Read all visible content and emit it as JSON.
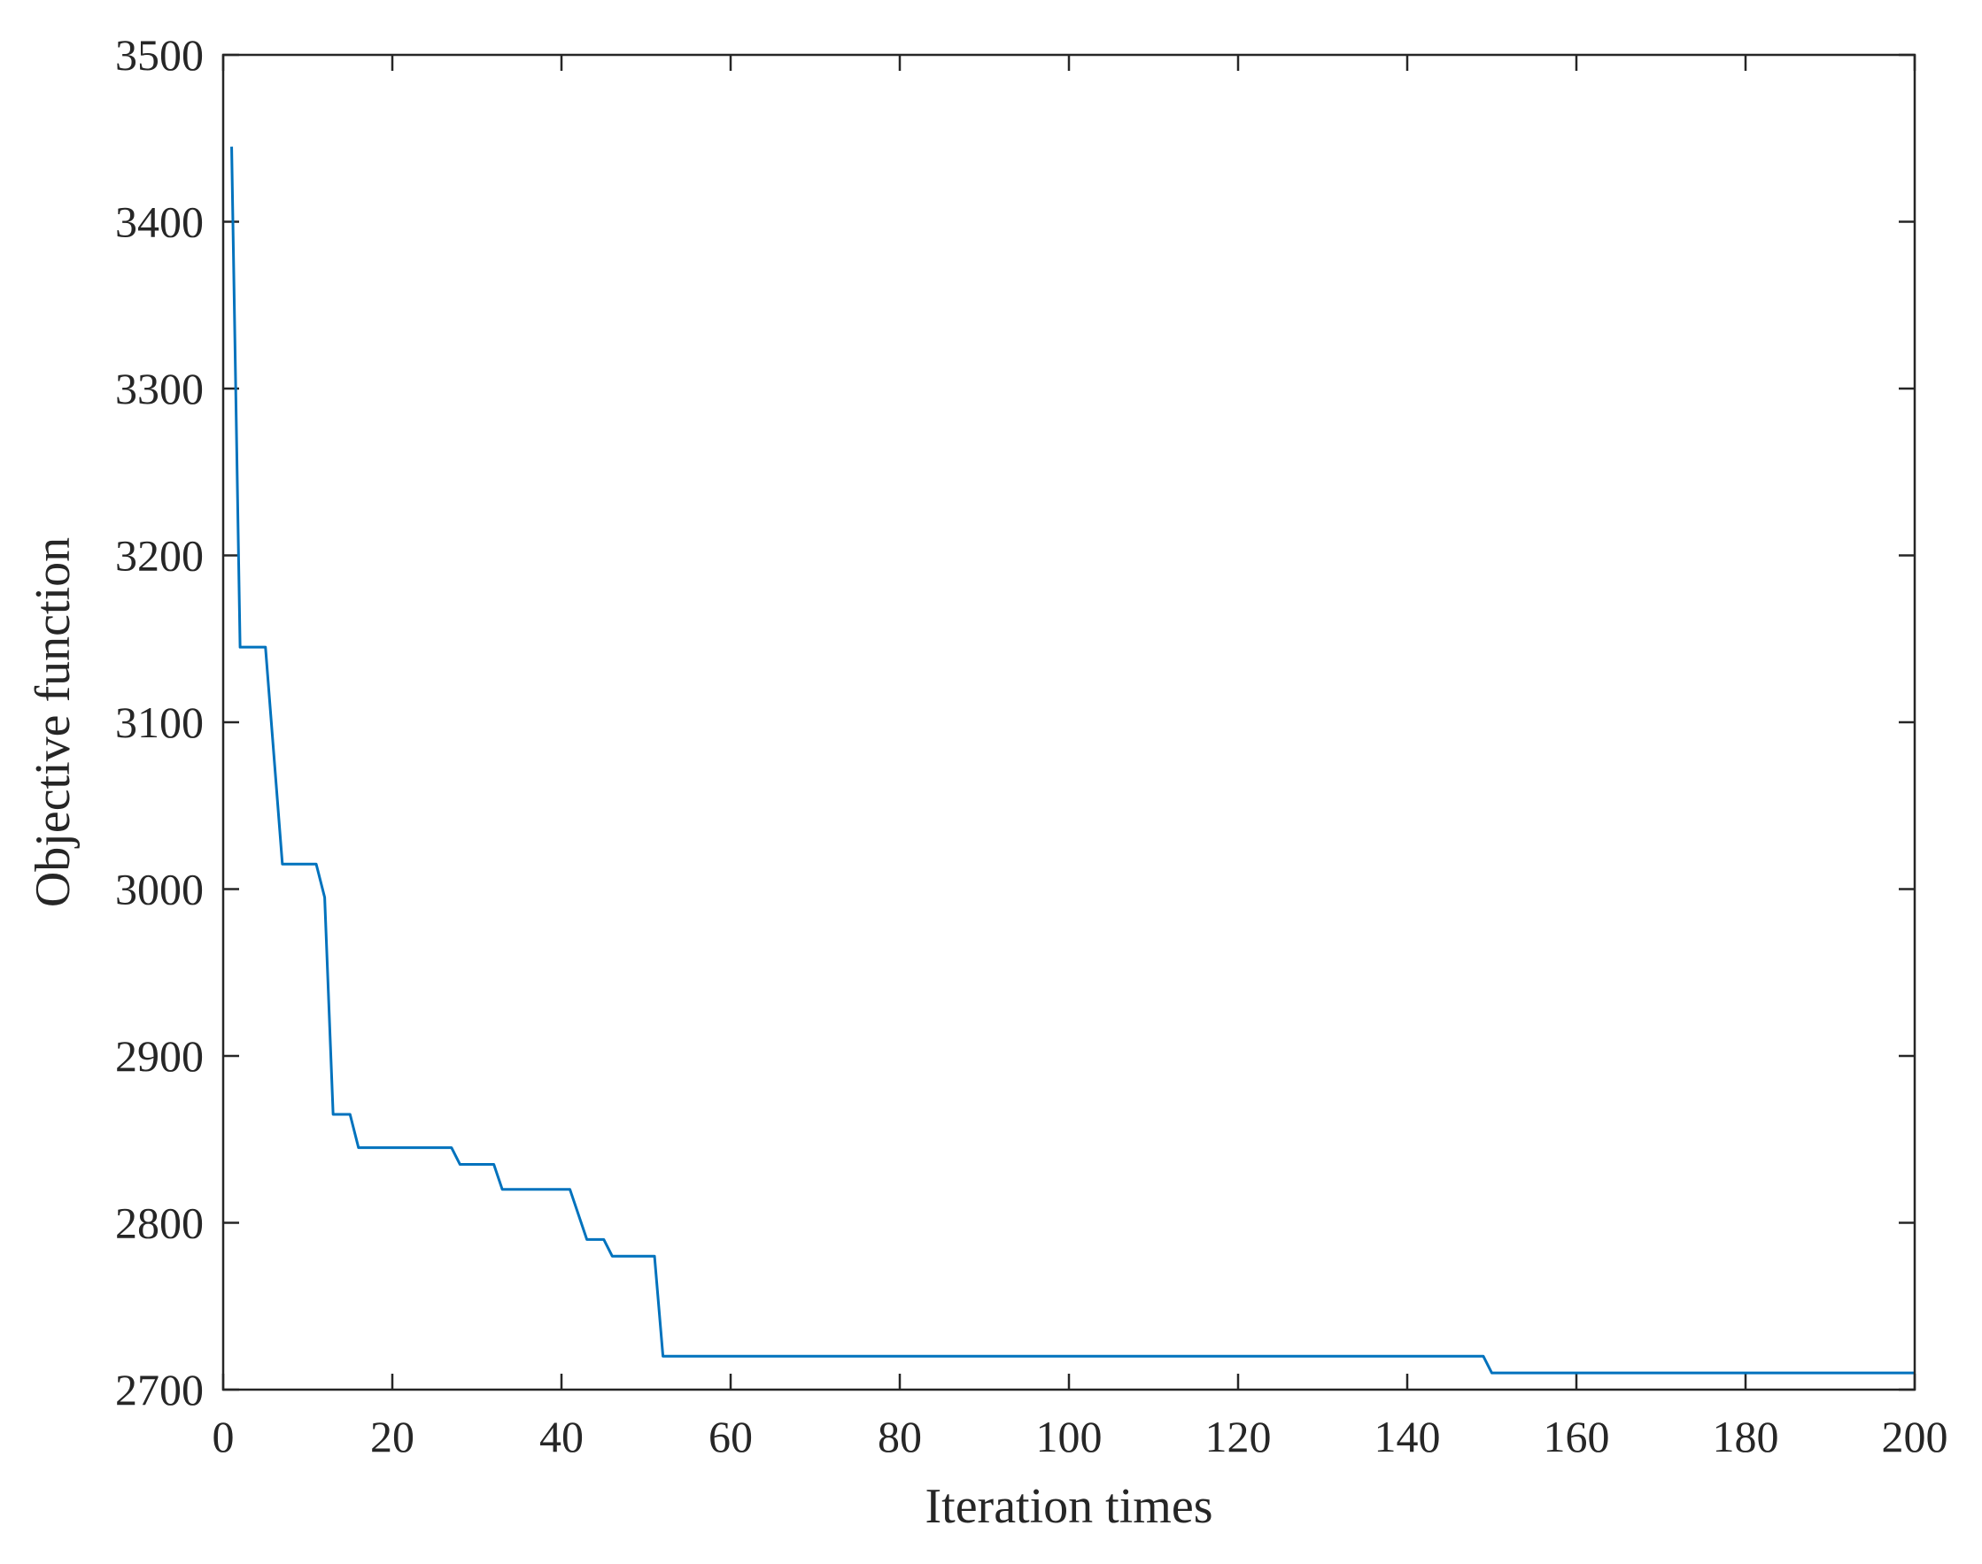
{
  "chart_data": {
    "type": "line",
    "title": "",
    "xlabel": "Iteration times",
    "ylabel": "Objective function",
    "xlim": [
      0,
      200
    ],
    "ylim": [
      2700,
      3500
    ],
    "x_ticks": [
      "0",
      "20",
      "40",
      "60",
      "80",
      "100",
      "120",
      "140",
      "160",
      "180",
      "200"
    ],
    "y_ticks": [
      "2700",
      "2800",
      "2900",
      "3000",
      "3100",
      "3200",
      "3300",
      "3400",
      "3500"
    ],
    "grid": false,
    "legend": "none",
    "series": [
      {
        "color": "#0072BD",
        "step": true,
        "x": [
          1,
          2,
          5,
          7,
          11,
          12,
          13,
          15,
          16,
          27,
          28,
          32,
          33,
          41,
          43,
          45,
          46,
          51,
          52,
          149,
          150,
          200
        ],
        "y": [
          3445,
          3145,
          3145,
          3015,
          3015,
          2995,
          2865,
          2865,
          2845,
          2845,
          2835,
          2835,
          2820,
          2820,
          2790,
          2790,
          2780,
          2780,
          2720,
          2720,
          2710,
          2710
        ]
      }
    ]
  }
}
